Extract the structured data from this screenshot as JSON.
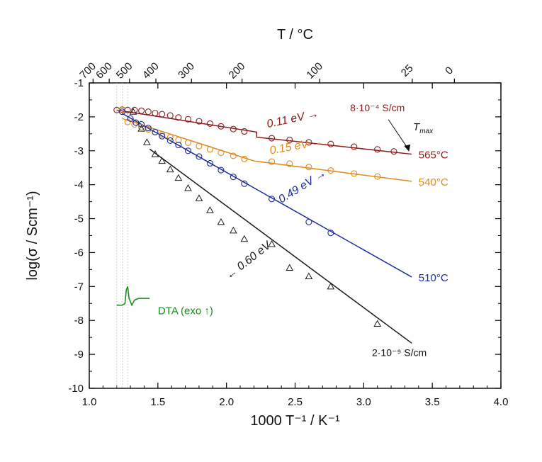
{
  "chart_data": {
    "type": "scatter",
    "x_axis": {
      "label": "1000 T⁻¹ / K⁻¹",
      "lim": [
        1.0,
        4.0
      ],
      "ticks": [
        1.0,
        1.5,
        2.0,
        2.5,
        3.0,
        3.5,
        4.0
      ],
      "tick_labels": [
        "1.0",
        "1.5",
        "2.0",
        "2.5",
        "3.0",
        "3.5",
        "4.0"
      ]
    },
    "y_axis": {
      "label": "log(σ / Scm⁻¹)",
      "lim": [
        -10,
        -1
      ],
      "ticks": [
        -1,
        -2,
        -3,
        -4,
        -5,
        -6,
        -7,
        -8,
        -9,
        -10
      ],
      "tick_labels": [
        "-1",
        "-2",
        "-3",
        "-4",
        "-5",
        "-6",
        "-7",
        "-8",
        "-9",
        "-10"
      ]
    },
    "top_axis": {
      "label": "T / °C",
      "ticks_celsius": [
        700,
        600,
        500,
        400,
        300,
        200,
        100,
        25,
        0
      ],
      "tick_labels": [
        "700",
        "600",
        "500",
        "400",
        "300",
        "200",
        "100",
        "25",
        "0"
      ]
    },
    "grid": false,
    "series": [
      {
        "name": "565°C",
        "color": "#8b1a1a",
        "marker": "circle",
        "points": [
          [
            1.2,
            -1.8
          ],
          [
            1.24,
            -1.79
          ],
          [
            1.28,
            -1.8
          ],
          [
            1.33,
            -1.8
          ],
          [
            1.38,
            -1.82
          ],
          [
            1.43,
            -1.85
          ],
          [
            1.48,
            -1.89
          ],
          [
            1.53,
            -1.92
          ],
          [
            1.59,
            -1.96
          ],
          [
            1.65,
            -2.02
          ],
          [
            1.72,
            -2.07
          ],
          [
            1.8,
            -2.13
          ],
          [
            1.88,
            -2.2
          ],
          [
            1.96,
            -2.28
          ],
          [
            2.05,
            -2.36
          ],
          [
            2.13,
            -2.43
          ],
          [
            2.33,
            -2.63
          ],
          [
            2.46,
            -2.68
          ],
          [
            2.6,
            -2.75
          ],
          [
            2.76,
            -2.8
          ],
          [
            2.93,
            -2.88
          ],
          [
            3.1,
            -2.96
          ],
          [
            3.22,
            -3.02
          ]
        ],
        "fit": [
          [
            1.2,
            -1.8
          ],
          [
            2.22,
            -2.45
          ],
          [
            2.22,
            -2.6
          ],
          [
            3.35,
            -3.1
          ]
        ],
        "activation_label": "0.11 eV →"
      },
      {
        "name": "540°C",
        "color": "#e08a1c",
        "marker": "circle",
        "points": [
          [
            1.24,
            -1.8
          ],
          [
            1.28,
            -2.15
          ],
          [
            1.33,
            -2.22
          ],
          [
            1.38,
            -2.3
          ],
          [
            1.43,
            -2.37
          ],
          [
            1.48,
            -2.45
          ],
          [
            1.53,
            -2.52
          ],
          [
            1.59,
            -2.6
          ],
          [
            1.65,
            -2.68
          ],
          [
            1.72,
            -2.76
          ],
          [
            1.8,
            -2.86
          ],
          [
            1.88,
            -2.96
          ],
          [
            1.96,
            -3.06
          ],
          [
            2.05,
            -3.15
          ],
          [
            2.13,
            -3.24
          ],
          [
            2.33,
            -3.32
          ],
          [
            2.46,
            -3.38
          ],
          [
            2.6,
            -3.48
          ],
          [
            2.76,
            -3.58
          ],
          [
            2.93,
            -3.67
          ],
          [
            3.1,
            -3.76
          ]
        ],
        "fit": [
          [
            1.24,
            -2.05
          ],
          [
            2.2,
            -3.3
          ],
          [
            3.35,
            -3.9
          ]
        ],
        "activation_label": "0.15 eV →"
      },
      {
        "name": "510°C",
        "color": "#1c2c9c",
        "marker": "circle",
        "points": [
          [
            1.24,
            -1.85
          ],
          [
            1.3,
            -2.05
          ],
          [
            1.34,
            -2.17
          ],
          [
            1.38,
            -2.22
          ],
          [
            1.43,
            -2.33
          ],
          [
            1.48,
            -2.45
          ],
          [
            1.53,
            -2.57
          ],
          [
            1.59,
            -2.7
          ],
          [
            1.65,
            -2.83
          ],
          [
            1.72,
            -3.0
          ],
          [
            1.8,
            -3.17
          ],
          [
            1.88,
            -3.37
          ],
          [
            1.96,
            -3.57
          ],
          [
            2.05,
            -3.77
          ],
          [
            2.13,
            -3.97
          ],
          [
            2.33,
            -4.42
          ],
          [
            2.6,
            -5.1
          ],
          [
            2.76,
            -5.42
          ]
        ],
        "fit": [
          [
            1.24,
            -1.9
          ],
          [
            3.35,
            -6.72
          ]
        ],
        "activation_label": "0.49 eV →"
      },
      {
        "name": "2·10⁻⁹ S/cm",
        "color": "#1a1a1a",
        "marker": "triangle",
        "points": [
          [
            1.32,
            -1.85
          ],
          [
            1.38,
            -2.35
          ],
          [
            1.42,
            -2.75
          ],
          [
            1.48,
            -3.1
          ],
          [
            1.53,
            -3.3
          ],
          [
            1.59,
            -3.55
          ],
          [
            1.65,
            -3.8
          ],
          [
            1.72,
            -4.1
          ],
          [
            1.8,
            -4.4
          ],
          [
            1.88,
            -4.75
          ],
          [
            1.96,
            -5.1
          ],
          [
            2.05,
            -5.35
          ],
          [
            2.13,
            -5.6
          ],
          [
            2.33,
            -5.75
          ],
          [
            2.46,
            -6.45
          ],
          [
            2.6,
            -6.7
          ],
          [
            2.76,
            -7.0
          ],
          [
            3.1,
            -8.1
          ]
        ],
        "fit": [
          [
            1.44,
            -2.95
          ],
          [
            3.35,
            -8.67
          ]
        ],
        "activation_label": "← 0.60 eV"
      }
    ],
    "dta_label": "DTA (exo ↑)",
    "dta_color": "#1e8c1e",
    "tmax_label": "T",
    "tmax_sub": "max",
    "tmax_values": [
      "565°C",
      "540°C",
      "510°C"
    ],
    "annot_high_sigma": "8·10⁻⁴ S/cm",
    "annot_low_sigma": "2·10⁻⁹ S/cm",
    "ref_lines_x": [
      1.2,
      1.24,
      1.28
    ]
  }
}
